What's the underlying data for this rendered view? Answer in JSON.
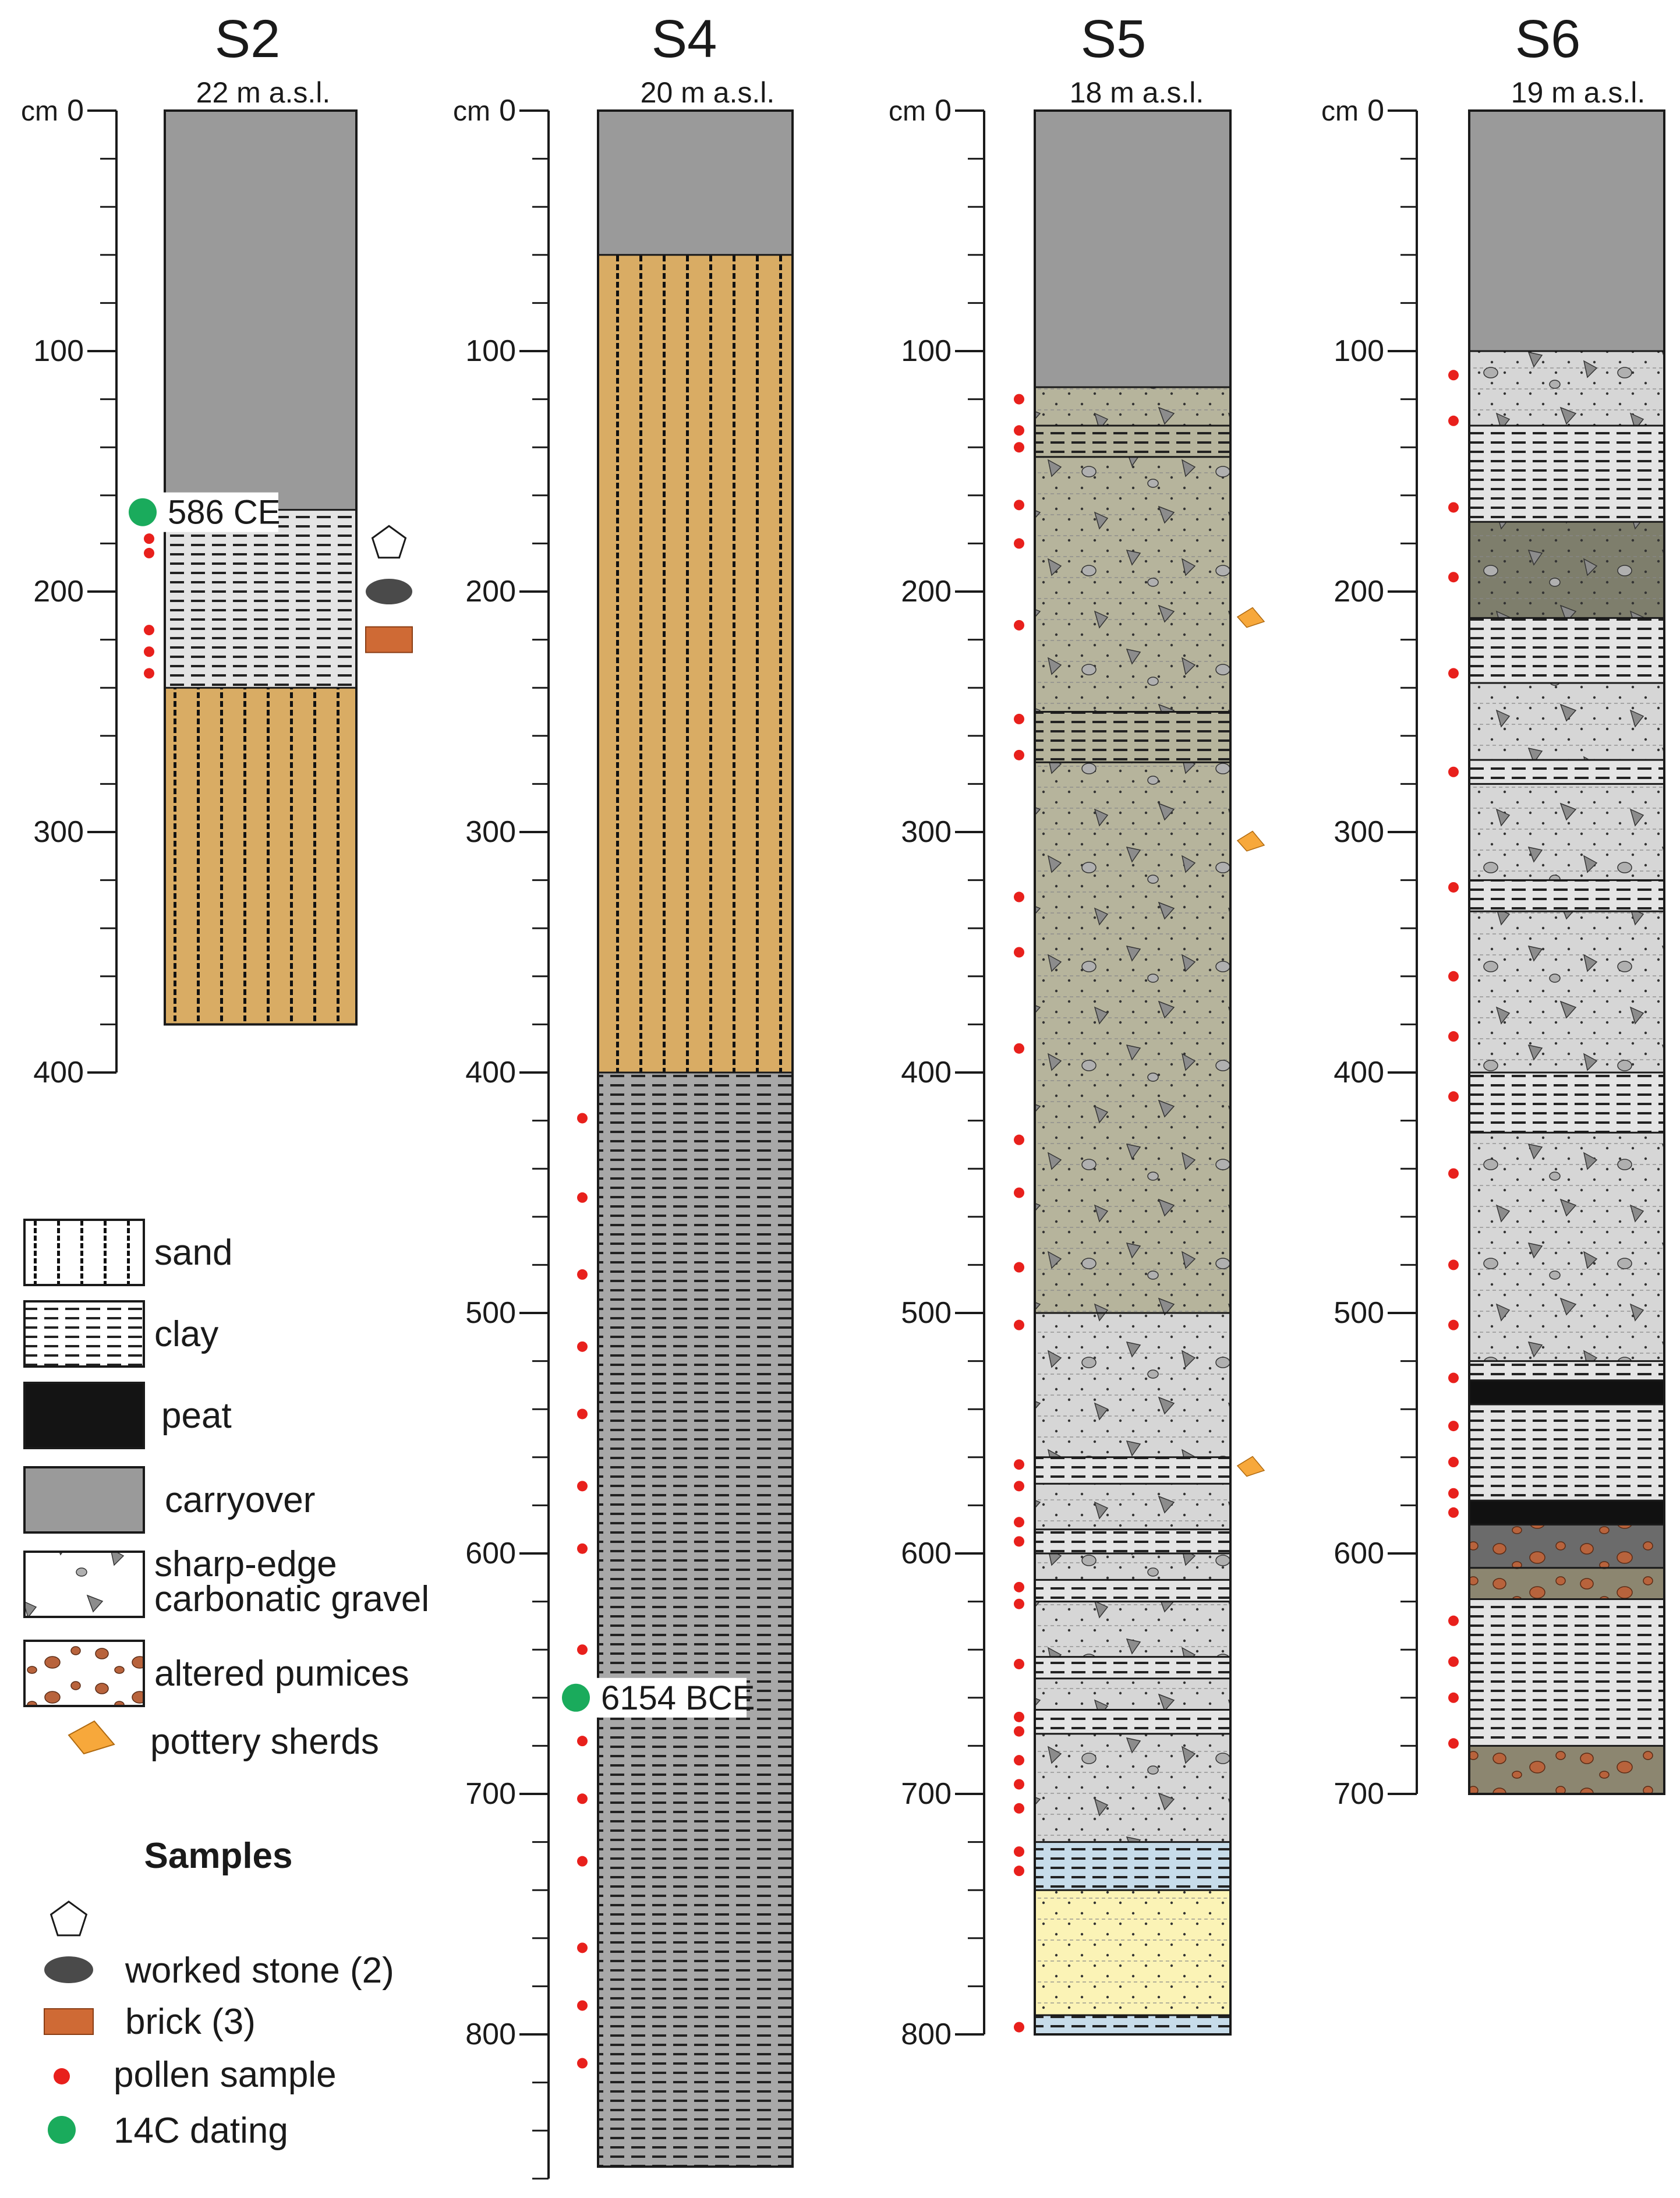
{
  "units": "cm",
  "colors": {
    "carryover": "#9a9a9a",
    "sand": "#d9ac64",
    "clay": "#e4e4e4",
    "peat": "#111111",
    "gravel_olive": "#b6b49c",
    "gravel_grey": "#d6d6d6",
    "olive_dark": "#7e7e6c",
    "pumice_dark": "#6b6b6b",
    "pumice_olive": "#8c8670",
    "blue": "#c7dcea",
    "yellow": "#fbf3b6",
    "pollen": "#e8201c",
    "dating": "#1aab5c",
    "pottery": "#f7a83b",
    "brick": "#cf6a35",
    "stone": "#4a4a4a"
  },
  "columns": [
    {
      "id": "S2",
      "title": "S2",
      "elevation": "22 m a.s.l.",
      "axis_max": 400,
      "axis_ticks": [
        "0",
        "100",
        "200",
        "300",
        "400"
      ],
      "axis_zero_prefix": "cm",
      "layers": [
        {
          "from": 0,
          "to": 166,
          "type": "carryover"
        },
        {
          "from": 166,
          "to": 240,
          "type": "clay"
        },
        {
          "from": 240,
          "to": 380,
          "type": "sand"
        }
      ],
      "pollen": [
        178,
        184,
        216,
        225,
        234
      ],
      "dating": [
        {
          "depth": 167,
          "label": "586 CE"
        }
      ],
      "samples": {
        "pentagon": 180,
        "stone": 200,
        "brick": 220
      },
      "pottery": []
    },
    {
      "id": "S4",
      "title": "S4",
      "elevation": "20 m a.s.l.",
      "axis_max": 860,
      "axis_ticks": [
        "0",
        "100",
        "200",
        "300",
        "400",
        "500",
        "600",
        "700",
        "800"
      ],
      "axis_zero_prefix": "cm",
      "layers": [
        {
          "from": 0,
          "to": 60,
          "type": "carryover"
        },
        {
          "from": 60,
          "to": 400,
          "type": "sand"
        },
        {
          "from": 400,
          "to": 855,
          "type": "clay_dark"
        }
      ],
      "pollen": [
        419,
        452,
        484,
        514,
        542,
        572,
        598,
        640,
        678,
        702,
        728,
        764,
        788,
        812
      ],
      "dating": [
        {
          "depth": 660,
          "label": "6154 BCE"
        }
      ],
      "pottery": []
    },
    {
      "id": "S5",
      "title": "S5",
      "elevation": "18 m a.s.l.",
      "axis_max": 800,
      "axis_ticks": [
        "0",
        "100",
        "200",
        "300",
        "400",
        "500",
        "600",
        "700",
        "800"
      ],
      "axis_zero_prefix": "cm",
      "layers": [
        {
          "from": 0,
          "to": 115,
          "type": "carryover"
        },
        {
          "from": 115,
          "to": 131,
          "type": "gravel_olive"
        },
        {
          "from": 131,
          "to": 144,
          "type": "clay_olive"
        },
        {
          "from": 144,
          "to": 250,
          "type": "gravel_olive"
        },
        {
          "from": 250,
          "to": 271,
          "type": "clay_olive"
        },
        {
          "from": 271,
          "to": 500,
          "type": "gravel_olive"
        },
        {
          "from": 500,
          "to": 560,
          "type": "gravel_grey"
        },
        {
          "from": 560,
          "to": 571,
          "type": "clay"
        },
        {
          "from": 571,
          "to": 590,
          "type": "gravel_grey"
        },
        {
          "from": 590,
          "to": 600,
          "type": "clay"
        },
        {
          "from": 600,
          "to": 611,
          "type": "gravel_grey"
        },
        {
          "from": 611,
          "to": 620,
          "type": "clay"
        },
        {
          "from": 620,
          "to": 643,
          "type": "gravel_grey"
        },
        {
          "from": 643,
          "to": 652,
          "type": "clay"
        },
        {
          "from": 652,
          "to": 665,
          "type": "gravel_grey"
        },
        {
          "from": 665,
          "to": 675,
          "type": "clay"
        },
        {
          "from": 675,
          "to": 720,
          "type": "gravel_grey"
        },
        {
          "from": 720,
          "to": 740,
          "type": "clay_blue"
        },
        {
          "from": 740,
          "to": 792,
          "type": "yellow_silt"
        },
        {
          "from": 792,
          "to": 800,
          "type": "clay_blue"
        }
      ],
      "pollen": [
        120,
        133,
        140,
        164,
        180,
        214,
        253,
        268,
        327,
        350,
        390,
        428,
        450,
        481,
        505,
        563,
        572,
        587,
        595,
        614,
        621,
        646,
        668,
        674,
        686,
        696,
        706,
        724,
        732,
        797
      ],
      "dating": [],
      "pottery": [
        212,
        305,
        565
      ]
    },
    {
      "id": "S6",
      "title": "S6",
      "elevation": "19 m a.s.l.",
      "axis_max": 700,
      "axis_ticks": [
        "0",
        "100",
        "200",
        "300",
        "400",
        "500",
        "600",
        "700"
      ],
      "axis_zero_prefix": "cm",
      "layers": [
        {
          "from": 0,
          "to": 100,
          "type": "carryover"
        },
        {
          "from": 100,
          "to": 131,
          "type": "gravel_grey"
        },
        {
          "from": 131,
          "to": 171,
          "type": "clay"
        },
        {
          "from": 171,
          "to": 211,
          "type": "olive_dark_gravel"
        },
        {
          "from": 211,
          "to": 238,
          "type": "clay"
        },
        {
          "from": 238,
          "to": 270,
          "type": "gravel_grey"
        },
        {
          "from": 270,
          "to": 280,
          "type": "clay"
        },
        {
          "from": 280,
          "to": 320,
          "type": "gravel_grey"
        },
        {
          "from": 320,
          "to": 333,
          "type": "clay"
        },
        {
          "from": 333,
          "to": 400,
          "type": "gravel_grey"
        },
        {
          "from": 400,
          "to": 425,
          "type": "clay"
        },
        {
          "from": 425,
          "to": 520,
          "type": "gravel_grey"
        },
        {
          "from": 520,
          "to": 528,
          "type": "clay"
        },
        {
          "from": 528,
          "to": 538,
          "type": "peat"
        },
        {
          "from": 538,
          "to": 578,
          "type": "clay"
        },
        {
          "from": 578,
          "to": 588,
          "type": "peat"
        },
        {
          "from": 588,
          "to": 606,
          "type": "pumice_dark"
        },
        {
          "from": 606,
          "to": 619,
          "type": "pumice_olive"
        },
        {
          "from": 619,
          "to": 680,
          "type": "clay"
        },
        {
          "from": 680,
          "to": 700,
          "type": "pumice_olive"
        }
      ],
      "pollen": [
        110,
        129,
        165,
        194,
        234,
        275,
        323,
        360,
        385,
        410,
        442,
        480,
        505,
        527,
        547,
        562,
        575,
        583,
        628,
        645,
        660,
        679
      ],
      "dating": [],
      "pottery": []
    }
  ],
  "legend": {
    "items": [
      {
        "key": "sand",
        "label": "sand"
      },
      {
        "key": "clay",
        "label": "clay"
      },
      {
        "key": "peat",
        "label": "peat"
      },
      {
        "key": "carryover",
        "label": "carryover"
      },
      {
        "key": "gravel",
        "label_line1": "sharp-edge",
        "label_line2": "carbonatic gravel"
      },
      {
        "key": "pumice",
        "label": "altered pumices"
      },
      {
        "key": "pottery",
        "label": "pottery sherds"
      }
    ],
    "samples_title": "Samples",
    "samples": [
      {
        "key": "pentagon",
        "label": ""
      },
      {
        "key": "stone",
        "label": "worked stone (2)"
      },
      {
        "key": "brick",
        "label": "brick (3)"
      },
      {
        "key": "pollen",
        "label": "pollen sample"
      },
      {
        "key": "dating",
        "label": "14C dating"
      }
    ]
  }
}
